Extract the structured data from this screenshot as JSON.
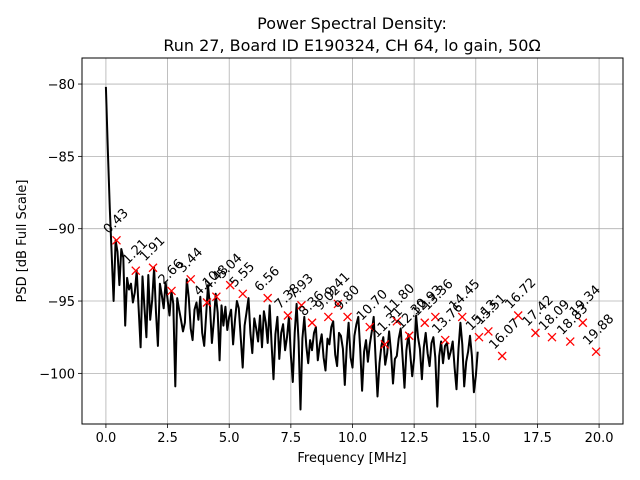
{
  "chart_data": {
    "type": "line",
    "title": "Power Spectral Density:",
    "subtitle": "Run 27, Board ID E190324, CH 64, lo gain, 50Ω",
    "xlabel": "Frequency [MHz]",
    "ylabel": "PSD [dB Full Scale]",
    "xlim": [
      -0.97,
      20.97
    ],
    "ylim": [
      -103.5,
      -78.2
    ],
    "grid": true,
    "xticks": [
      0.0,
      2.5,
      5.0,
      7.5,
      10.0,
      12.5,
      15.0,
      17.5,
      20.0
    ],
    "xtick_labels": [
      "0.0",
      "2.5",
      "5.0",
      "7.5",
      "10.0",
      "12.5",
      "15.0",
      "17.5",
      "20.0"
    ],
    "yticks": [
      -80,
      -85,
      -90,
      -95,
      -100
    ],
    "ytick_labels": [
      "−80",
      "−85",
      "−90",
      "−95",
      "−100"
    ],
    "series": [
      {
        "name": "PSD",
        "color": "#000000",
        "x_start": 0.0,
        "x_step": 0.078125,
        "values": [
          -80.2,
          -84.5,
          -88.6,
          -91.8,
          -95.0,
          -90.8,
          -91.6,
          -93.9,
          -91.4,
          -92.0,
          -96.7,
          -93.4,
          -94.2,
          -93.8,
          -95.1,
          -94.4,
          -92.9,
          -95.6,
          -98.2,
          -93.3,
          -95.4,
          -97.5,
          -93.2,
          -96.3,
          -94.9,
          -92.7,
          -95.8,
          -98.1,
          -93.8,
          -94.6,
          -95.5,
          -93.7,
          -94.9,
          -96.0,
          -94.3,
          -95.2,
          -100.9,
          -94.8,
          -95.6,
          -96.3,
          -97.1,
          -96.5,
          -93.5,
          -94.8,
          -96.9,
          -97.7,
          -95.6,
          -95.1,
          -96.3,
          -94.7,
          -97.2,
          -98.1,
          -96.0,
          -93.9,
          -95.3,
          -97.9,
          -96.4,
          -94.5,
          -95.8,
          -99.1,
          -95.3,
          -96.7,
          -95.4,
          -97.0,
          -96.1,
          -95.6,
          -98.0,
          -96.3,
          -95.0,
          -95.5,
          -97.6,
          -99.6,
          -96.7,
          -95.8,
          -94.8,
          -97.2,
          -98.6,
          -96.2,
          -96.9,
          -97.8,
          -96.0,
          -98.2,
          -95.7,
          -96.5,
          -97.9,
          -95.3,
          -98.0,
          -100.4,
          -97.3,
          -96.1,
          -99.0,
          -97.2,
          -96.6,
          -98.4,
          -97.5,
          -96.1,
          -98.8,
          -100.6,
          -97.2,
          -95.2,
          -97.8,
          -102.5,
          -97.6,
          -96.1,
          -98.1,
          -99.3,
          -97.7,
          -98.4,
          -97.2,
          -96.8,
          -99.1,
          -98.0,
          -97.3,
          -98.9,
          -99.8,
          -97.6,
          -98.0,
          -96.8,
          -96.4,
          -98.7,
          -99.5,
          -97.2,
          -97.4,
          -98.3,
          -100.8,
          -98.2,
          -96.5,
          -98.9,
          -99.6,
          -97.4,
          -96.6,
          -96.1,
          -98.3,
          -101.2,
          -98.5,
          -97.7,
          -99.2,
          -98.0,
          -97.1,
          -96.1,
          -99.0,
          -101.6,
          -99.3,
          -98.1,
          -97.5,
          -99.4,
          -98.6,
          -97.1,
          -98.5,
          -100.7,
          -99.0,
          -98.8,
          -97.6,
          -96.9,
          -98.9,
          -101.0,
          -98.4,
          -97.3,
          -98.7,
          -100.2,
          -99.0,
          -96.0,
          -97.5,
          -98.3,
          -100.4,
          -98.2,
          -97.2,
          -98.6,
          -99.5,
          -97.9,
          -97.5,
          -98.9,
          -102.3,
          -98.8,
          -97.8,
          -99.3,
          -98.1,
          -97.9,
          -99.0,
          -98.5,
          -97.8,
          -99.6,
          -101.1,
          -98.3,
          -96.5,
          -98.0,
          -100.9,
          -99.2,
          -98.5,
          -97.4,
          -98.8,
          -101.3,
          -100.2,
          -98.5
        ]
      }
    ],
    "peaks": {
      "marker": "x",
      "color": "#ff0000",
      "points": [
        {
          "x": 0.43,
          "y": -90.8,
          "label": "0.43"
        },
        {
          "x": 1.21,
          "y": -92.9,
          "label": "1.21"
        },
        {
          "x": 1.91,
          "y": -92.7,
          "label": "1.91"
        },
        {
          "x": 2.66,
          "y": -94.3,
          "label": "2.66"
        },
        {
          "x": 3.44,
          "y": -93.5,
          "label": "3.44"
        },
        {
          "x": 4.1,
          "y": -95.1,
          "label": "4.10"
        },
        {
          "x": 4.48,
          "y": -94.7,
          "label": "4.48"
        },
        {
          "x": 5.04,
          "y": -93.9,
          "label": "5.04"
        },
        {
          "x": 5.55,
          "y": -94.5,
          "label": "5.55"
        },
        {
          "x": 6.56,
          "y": -94.8,
          "label": "6.56"
        },
        {
          "x": 7.38,
          "y": -96.0,
          "label": "7.38"
        },
        {
          "x": 7.93,
          "y": -95.3,
          "label": "7.93"
        },
        {
          "x": 8.36,
          "y": -96.5,
          "label": "8.36"
        },
        {
          "x": 9.02,
          "y": -96.1,
          "label": "9.02"
        },
        {
          "x": 9.41,
          "y": -95.2,
          "label": "9.41"
        },
        {
          "x": 9.8,
          "y": -96.1,
          "label": "9.80"
        },
        {
          "x": 10.7,
          "y": -96.8,
          "label": "10.70"
        },
        {
          "x": 11.31,
          "y": -98.0,
          "label": "11.31"
        },
        {
          "x": 11.8,
          "y": -96.4,
          "label": "11.80"
        },
        {
          "x": 12.3,
          "y": -97.4,
          "label": "12.30"
        },
        {
          "x": 12.93,
          "y": -96.5,
          "label": "12.93"
        },
        {
          "x": 13.36,
          "y": -96.1,
          "label": "13.36"
        },
        {
          "x": 13.76,
          "y": -97.7,
          "label": "13.76"
        },
        {
          "x": 14.45,
          "y": -96.1,
          "label": "14.45"
        },
        {
          "x": 15.13,
          "y": -97.5,
          "label": "15.13"
        },
        {
          "x": 15.51,
          "y": -97.1,
          "label": "15.51"
        },
        {
          "x": 16.07,
          "y": -98.8,
          "label": "16.07"
        },
        {
          "x": 16.72,
          "y": -96.0,
          "label": "16.72"
        },
        {
          "x": 17.42,
          "y": -97.2,
          "label": "17.42"
        },
        {
          "x": 18.09,
          "y": -97.5,
          "label": "18.09"
        },
        {
          "x": 18.83,
          "y": -97.8,
          "label": "18.83"
        },
        {
          "x": 19.34,
          "y": -96.5,
          "label": "19.34"
        },
        {
          "x": 19.88,
          "y": -98.5,
          "label": "19.88"
        }
      ]
    }
  }
}
